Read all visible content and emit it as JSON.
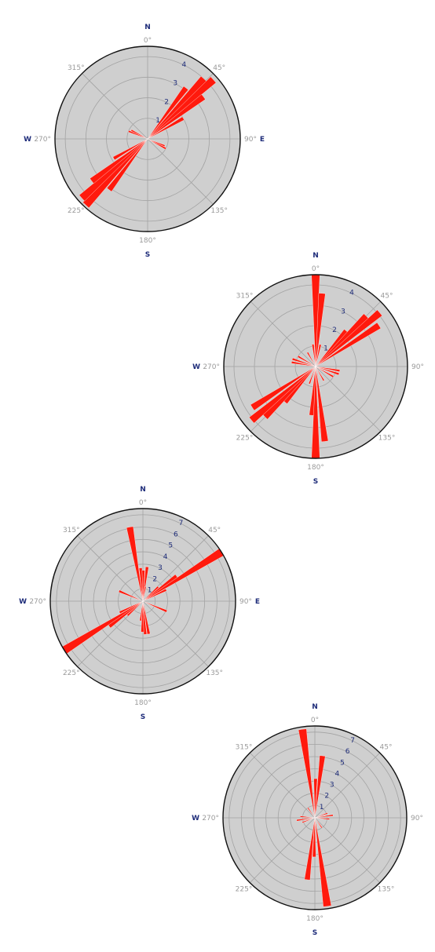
{
  "chart_data": [
    {
      "type": "rose",
      "cardinals": {
        "N": "N",
        "W": "W",
        "E": "E",
        "S": "S"
      },
      "angle_labels": [
        "0°",
        "45°",
        "90°",
        "135°",
        "180°",
        "225°",
        "270°",
        "315°"
      ],
      "radial_ticks": [
        "1",
        "2",
        "3",
        "4"
      ],
      "rmax": 4.5,
      "sectors": [
        {
          "dir": 37,
          "value": 3.1
        },
        {
          "dir": 43,
          "value": 4.0
        },
        {
          "dir": 48,
          "value": 4.3
        },
        {
          "dir": 53,
          "value": 3.4
        },
        {
          "dir": 60,
          "value": 2.0
        },
        {
          "dir": 112,
          "value": 0.9
        },
        {
          "dir": 118,
          "value": 1.0
        },
        {
          "dir": 217,
          "value": 3.1
        },
        {
          "dir": 223,
          "value": 4.4
        },
        {
          "dir": 228,
          "value": 4.3
        },
        {
          "dir": 233,
          "value": 3.4
        },
        {
          "dir": 240,
          "value": 1.9
        },
        {
          "dir": 292,
          "value": 1.0
        },
        {
          "dir": 298,
          "value": 0.9
        }
      ]
    },
    {
      "type": "rose",
      "cardinals": {
        "N": "N",
        "W": "W",
        "E": "",
        "S": "S"
      },
      "angle_labels": [
        "0°",
        "45°",
        "90°",
        "135°",
        "180°",
        "225°",
        "270°",
        "315°"
      ],
      "radial_ticks": [
        "1",
        "2",
        "3",
        "4"
      ],
      "rmax": 4.5,
      "sectors": [
        {
          "dir": 0,
          "value": 4.5
        },
        {
          "dir": 5,
          "value": 3.6
        },
        {
          "dir": 12,
          "value": 1.1
        },
        {
          "dir": 40,
          "value": 2.3
        },
        {
          "dir": 45,
          "value": 3.5
        },
        {
          "dir": 50,
          "value": 4.1
        },
        {
          "dir": 57,
          "value": 3.7
        },
        {
          "dir": 100,
          "value": 1.2
        },
        {
          "dir": 108,
          "value": 1.2
        },
        {
          "dir": 120,
          "value": 1.0
        },
        {
          "dir": 150,
          "value": 0.8
        },
        {
          "dir": 173,
          "value": 3.7
        },
        {
          "dir": 180,
          "value": 4.5
        },
        {
          "dir": 185,
          "value": 2.4
        },
        {
          "dir": 200,
          "value": 0.9
        },
        {
          "dir": 220,
          "value": 2.3
        },
        {
          "dir": 225,
          "value": 3.5
        },
        {
          "dir": 230,
          "value": 4.1
        },
        {
          "dir": 237,
          "value": 3.7
        },
        {
          "dir": 280,
          "value": 1.2
        },
        {
          "dir": 288,
          "value": 1.2
        },
        {
          "dir": 300,
          "value": 1.0
        },
        {
          "dir": 330,
          "value": 0.8
        },
        {
          "dir": 353,
          "value": 1.1
        }
      ]
    },
    {
      "type": "rose",
      "cardinals": {
        "N": "N",
        "W": "W",
        "E": "E",
        "S": "S"
      },
      "angle_labels": [
        "0°",
        "45°",
        "90°",
        "135°",
        "180°",
        "225°",
        "270°",
        "315°"
      ],
      "radial_ticks": [
        "1",
        "2",
        "3",
        "4",
        "5",
        "6",
        "7"
      ],
      "rmax": 7.5,
      "sectors": [
        {
          "dir": 7,
          "value": 2.8
        },
        {
          "dir": 10,
          "value": 1.2
        },
        {
          "dir": 47,
          "value": 1.7
        },
        {
          "dir": 53,
          "value": 3.4
        },
        {
          "dir": 58,
          "value": 7.5
        },
        {
          "dir": 64,
          "value": 2.1
        },
        {
          "dir": 113,
          "value": 2.1
        },
        {
          "dir": 170,
          "value": 2.7
        },
        {
          "dir": 176,
          "value": 2.7
        },
        {
          "dir": 181,
          "value": 2.5
        },
        {
          "dir": 187,
          "value": 1.6
        },
        {
          "dir": 227,
          "value": 1.7
        },
        {
          "dir": 233,
          "value": 3.4
        },
        {
          "dir": 238,
          "value": 7.5
        },
        {
          "dir": 244,
          "value": 2.1
        },
        {
          "dir": 293,
          "value": 2.1
        },
        {
          "dir": 350,
          "value": 6.1
        },
        {
          "dir": 356,
          "value": 2.7
        },
        {
          "dir": 1,
          "value": 2.5
        }
      ]
    },
    {
      "type": "rose",
      "cardinals": {
        "N": "N",
        "W": "W",
        "E": "",
        "S": "S"
      },
      "angle_labels": [
        "0°",
        "45°",
        "90°",
        "135°",
        "180°",
        "225°",
        "270°",
        "315°"
      ],
      "radial_ticks": [
        "1",
        "2",
        "3",
        "4",
        "5",
        "6",
        "7"
      ],
      "rmax": 7.5,
      "sectors": [
        {
          "dir": 1,
          "value": 3.2
        },
        {
          "dir": 7,
          "value": 5.1
        },
        {
          "dir": 70,
          "value": 1.1
        },
        {
          "dir": 82,
          "value": 1.5
        },
        {
          "dir": 95,
          "value": 1.2
        },
        {
          "dir": 145,
          "value": 1.0
        },
        {
          "dir": 172,
          "value": 7.3
        },
        {
          "dir": 181,
          "value": 3.2
        },
        {
          "dir": 187,
          "value": 5.1
        },
        {
          "dir": 250,
          "value": 1.1
        },
        {
          "dir": 262,
          "value": 1.5
        },
        {
          "dir": 275,
          "value": 1.2
        },
        {
          "dir": 325,
          "value": 1.0
        },
        {
          "dir": 352,
          "value": 7.3
        }
      ]
    }
  ]
}
